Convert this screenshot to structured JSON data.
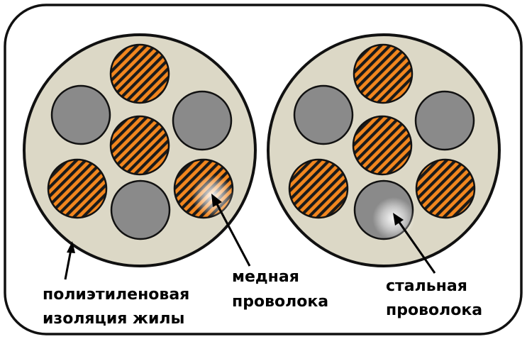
{
  "labels": {
    "insulation_line1": "полиэтиленовая",
    "insulation_line2": "изоляция жилы",
    "copper_line1": "медная",
    "copper_line2": "проволока",
    "steel_line1": "стальная",
    "steel_line2": "проволока"
  },
  "colors": {
    "insulation_fill": "#dcd8c6",
    "copper_orange": "#f2861e",
    "copper_stripe": "#1a1a1a",
    "steel_fill": "#8a8a8a",
    "outline": "#111111"
  }
}
